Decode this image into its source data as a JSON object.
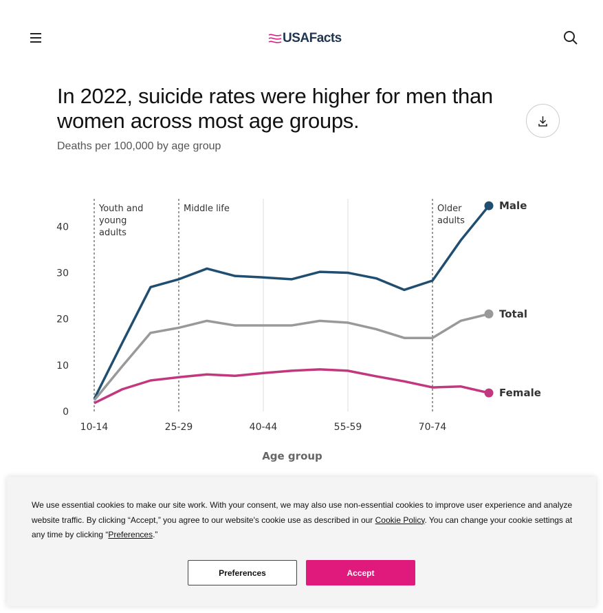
{
  "header": {
    "logo": "USAFacts"
  },
  "chart_data": {
    "type": "line",
    "title": "In 2022, suicide rates were higher for men than women across most age groups.",
    "subtitle": "Deaths per 100,000 by age group",
    "x_label": "Age group",
    "categories": [
      "10-14",
      null,
      null,
      "25-29",
      null,
      null,
      "40-44",
      null,
      null,
      "55-59",
      null,
      null,
      "70-74",
      null,
      null
    ],
    "series": [
      {
        "name": "Male",
        "color": "#1f4e70",
        "values": [
          2.7,
          14.9,
          26.9,
          28.6,
          30.9,
          29.3,
          29.0,
          28.6,
          30.2,
          30.0,
          28.8,
          26.3,
          28.3,
          37.0,
          44.5
        ]
      },
      {
        "name": "Total",
        "color": "#999999",
        "values": [
          2.4,
          9.8,
          17.0,
          18.1,
          19.6,
          18.6,
          18.6,
          18.6,
          19.6,
          19.2,
          17.8,
          15.9,
          15.9,
          19.6,
          21.1
        ]
      },
      {
        "name": "Female",
        "color": "#c2387f",
        "values": [
          1.8,
          4.8,
          6.7,
          7.4,
          8.0,
          7.7,
          8.3,
          8.8,
          9.1,
          8.8,
          7.6,
          6.5,
          5.2,
          5.4,
          4.0
        ]
      }
    ],
    "annotations": [
      [
        "Youth and",
        "young",
        "adults"
      ],
      [
        "Middle life"
      ],
      [
        "Older",
        "adults"
      ]
    ],
    "ylim": [
      0,
      46
    ],
    "yticks": [
      0,
      10,
      20,
      30,
      40
    ]
  },
  "cookie_banner": {
    "text_1": "We use essential cookies to make our site work. With your consent, we may also use non-essential cookies to improve user experience and analyze website traffic. By clicking “Accept,” you agree to our website's cookie use as described in our ",
    "link_1": "Cookie Policy",
    "text_2": ". You can change your cookie settings at any time by clicking “",
    "link_2": "Preferences",
    "text_3": ".”",
    "button_preferences": "Preferences",
    "button_accept": "Accept"
  }
}
